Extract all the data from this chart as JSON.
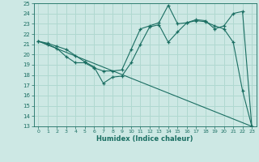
{
  "xlabel": "Humidex (Indice chaleur)",
  "bg_color": "#cde8e4",
  "grid_color": "#b0d8d0",
  "line_color": "#1a6e62",
  "xlim": [
    -0.5,
    23.5
  ],
  "ylim": [
    13,
    25
  ],
  "xticks": [
    0,
    1,
    2,
    3,
    4,
    5,
    6,
    7,
    8,
    9,
    10,
    11,
    12,
    13,
    14,
    15,
    16,
    17,
    18,
    19,
    20,
    21,
    22,
    23
  ],
  "yticks": [
    13,
    14,
    15,
    16,
    17,
    18,
    19,
    20,
    21,
    22,
    23,
    24,
    25
  ],
  "line1_x": [
    0,
    1,
    2,
    3,
    4,
    5,
    6,
    7,
    8,
    9,
    10,
    11,
    12,
    13,
    14,
    15,
    16,
    17,
    18,
    19,
    20,
    21,
    22,
    23
  ],
  "line1_y": [
    21.3,
    21.1,
    20.8,
    20.5,
    19.9,
    19.3,
    18.8,
    17.2,
    17.8,
    17.9,
    19.2,
    21.0,
    22.7,
    22.9,
    21.2,
    22.2,
    23.1,
    23.3,
    23.2,
    22.8,
    22.5,
    21.2,
    16.5,
    13.0
  ],
  "line2_x": [
    0,
    1,
    2,
    3,
    4,
    5,
    6,
    7,
    8,
    9,
    10,
    11,
    12,
    13,
    14,
    15,
    16,
    17,
    18,
    19,
    20,
    21,
    22,
    23
  ],
  "line2_y": [
    21.3,
    21.0,
    20.6,
    19.8,
    19.2,
    19.2,
    18.7,
    18.4,
    18.4,
    18.5,
    20.5,
    22.5,
    22.8,
    23.1,
    24.8,
    23.0,
    23.1,
    23.4,
    23.3,
    22.5,
    22.8,
    24.0,
    24.2,
    13.0
  ],
  "line3_x": [
    0,
    23
  ],
  "line3_y": [
    21.3,
    13.0
  ]
}
